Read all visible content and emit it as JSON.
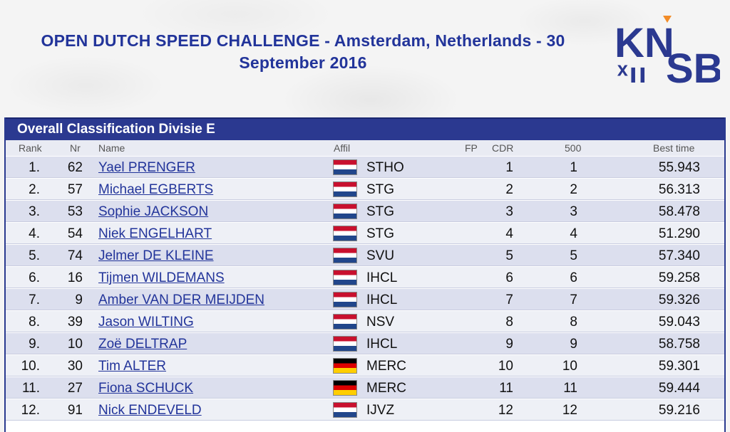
{
  "header": {
    "title_line1": "OPEN DUTCH SPEED CHALLENGE - Amsterdam, Netherlands - 30",
    "title_line2": "September 2016"
  },
  "logo": {
    "text_top": "KN",
    "text_bottom": "SB",
    "accent_color": "#f28c28",
    "brand_color": "#2b3990"
  },
  "panel": {
    "title": "Overall Classification Divisie E"
  },
  "columns": {
    "rank": "Rank",
    "nr": "Nr",
    "name": "Name",
    "affil": "Affil",
    "fp": "FP",
    "cdr": "CDR",
    "s500": "500",
    "best": "Best time"
  },
  "rows": [
    {
      "rank": "1.",
      "nr": "62",
      "name": "Yael PRENGER",
      "flag": "nl",
      "affil": "STHO",
      "cdr": "1",
      "s500": "1",
      "best": "55.943"
    },
    {
      "rank": "2.",
      "nr": "57",
      "name": "Michael EGBERTS",
      "flag": "nl",
      "affil": "STG",
      "cdr": "2",
      "s500": "2",
      "best": "56.313"
    },
    {
      "rank": "3.",
      "nr": "53",
      "name": "Sophie JACKSON",
      "flag": "nl",
      "affil": "STG",
      "cdr": "3",
      "s500": "3",
      "best": "58.478"
    },
    {
      "rank": "4.",
      "nr": "54",
      "name": "Niek ENGELHART",
      "flag": "nl",
      "affil": "STG",
      "cdr": "4",
      "s500": "4",
      "best": "51.290"
    },
    {
      "rank": "5.",
      "nr": "74",
      "name": "Jelmer DE KLEINE",
      "flag": "nl",
      "affil": "SVU",
      "cdr": "5",
      "s500": "5",
      "best": "57.340"
    },
    {
      "rank": "6.",
      "nr": "16",
      "name": "Tijmen WILDEMANS",
      "flag": "nl",
      "affil": "IHCL",
      "cdr": "6",
      "s500": "6",
      "best": "59.258"
    },
    {
      "rank": "7.",
      "nr": "9",
      "name": "Amber VAN DER MEIJDEN",
      "flag": "nl",
      "affil": "IHCL",
      "cdr": "7",
      "s500": "7",
      "best": "59.326"
    },
    {
      "rank": "8.",
      "nr": "39",
      "name": "Jason WILTING",
      "flag": "nl",
      "affil": "NSV",
      "cdr": "8",
      "s500": "8",
      "best": "59.043"
    },
    {
      "rank": "9.",
      "nr": "10",
      "name": "Zoë DELTRAP",
      "flag": "nl",
      "affil": "IHCL",
      "cdr": "9",
      "s500": "9",
      "best": "58.758"
    },
    {
      "rank": "10.",
      "nr": "30",
      "name": "Tim ALTER",
      "flag": "de",
      "affil": "MERC",
      "cdr": "10",
      "s500": "10",
      "best": "59.301"
    },
    {
      "rank": "11.",
      "nr": "27",
      "name": "Fiona SCHUCK",
      "flag": "de",
      "affil": "MERC",
      "cdr": "11",
      "s500": "11",
      "best": "59.444"
    },
    {
      "rank": "12.",
      "nr": "91",
      "name": "Nick ENDEVELD",
      "flag": "nl",
      "affil": "IJVZ",
      "cdr": "12",
      "s500": "12",
      "best": "59.216"
    }
  ]
}
